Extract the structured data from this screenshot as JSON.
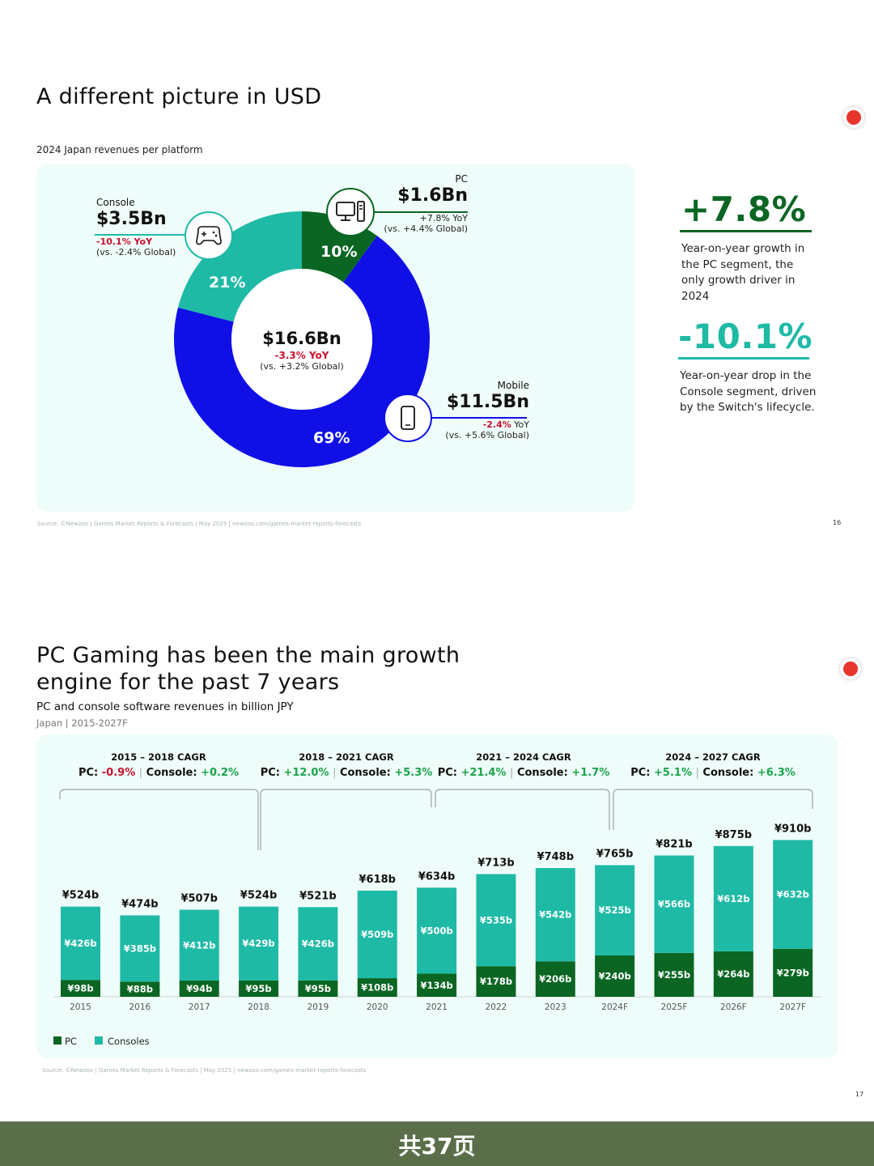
{
  "slide1": {
    "title": "A different picture in USD",
    "subtitle": "2024 Japan revenues per platform",
    "total": {
      "value": "$16.6Bn",
      "yoy": "-3.3% YoY",
      "global": "(vs. +3.2% Global)"
    },
    "pc": {
      "label": "PC",
      "value": "$1.6Bn",
      "yoy": "+7.8% YoY",
      "global": "(vs. +4.4% Global)",
      "share": "10%"
    },
    "console": {
      "label": "Console",
      "value": "$3.5Bn",
      "yoy": "-10.1% YoY",
      "global": "(vs. -2.4% Global)",
      "share": "21%"
    },
    "mobile": {
      "label": "Mobile",
      "value": "$11.5Bn",
      "yoy_num": "-2.4%",
      "yoy_suffix": " YoY",
      "global": "(vs. +5.6% Global)",
      "share": "69%"
    },
    "stats": [
      {
        "value": "+7.8%",
        "text": "Year-on-year growth in the PC segment, the only growth driver in 2024"
      },
      {
        "value": "-10.1%",
        "text": "Year-on-year drop in the Console segment, driven by the Switch's lifecycle."
      }
    ],
    "source": "Source: ©Newzoo | Games Market Reports & Forecasts | May 2025 | newzoo.com/games-market-reports-forecasts",
    "page": "16"
  },
  "slide2": {
    "title_line1": "PC Gaming has been the main growth",
    "title_line2": "engine for the past 7 years",
    "subtitle": "PC and console software revenues in billion JPY",
    "sub2": "Japan | 2015-2027F",
    "cagr": [
      {
        "title": "2015 – 2018 CAGR",
        "pc": "-0.9%",
        "console": "+0.2%"
      },
      {
        "title": "2018 – 2021 CAGR",
        "pc": "+12.0%",
        "console": "+5.3%"
      },
      {
        "title": "2021 – 2024 CAGR",
        "pc": "+21.4%",
        "console": "+1.7%"
      },
      {
        "title": "2024 – 2027 CAGR",
        "pc": "+5.1%",
        "console": "+6.3%"
      }
    ],
    "pc_prefix": "PC: ",
    "console_prefix": "Console: ",
    "source": "Source: ©Newzoo | Games Market Reports & Forecasts | May 2025 | newzoo.com/games-market-reports-forecasts",
    "page": "17"
  },
  "footer": {
    "text": "共37页"
  },
  "colors": {
    "pc": "#0b6623",
    "console": "#1fbaa6",
    "mobile": "#1010e6",
    "panel": "#effdfa",
    "neg": "#c8102e",
    "pos": "#1aa34a"
  },
  "chart_data": [
    {
      "type": "pie",
      "title": "2024 Japan revenues per platform",
      "categories": [
        "PC",
        "Mobile",
        "Console"
      ],
      "values": [
        10,
        69,
        21
      ],
      "amounts_usd_bn": [
        1.6,
        11.5,
        3.5
      ],
      "total_usd_bn": 16.6,
      "donut": true
    },
    {
      "type": "bar",
      "stacked": true,
      "title": "PC and console software revenues in billion JPY",
      "categories": [
        "2015",
        "2016",
        "2017",
        "2018",
        "2019",
        "2020",
        "2021",
        "2022",
        "2023",
        "2024F",
        "2025F",
        "2026F",
        "2027F"
      ],
      "series": [
        {
          "name": "PC",
          "values": [
            98,
            88,
            94,
            95,
            95,
            108,
            134,
            178,
            206,
            240,
            255,
            264,
            279
          ]
        },
        {
          "name": "Consoles",
          "values": [
            426,
            385,
            412,
            429,
            426,
            509,
            500,
            535,
            542,
            525,
            566,
            612,
            632
          ]
        }
      ],
      "totals": [
        524,
        474,
        507,
        524,
        521,
        618,
        634,
        713,
        748,
        765,
        821,
        875,
        910
      ],
      "unit_prefix": "¥",
      "unit_suffix": "b",
      "legend": "bottom-left",
      "grid": false
    }
  ]
}
